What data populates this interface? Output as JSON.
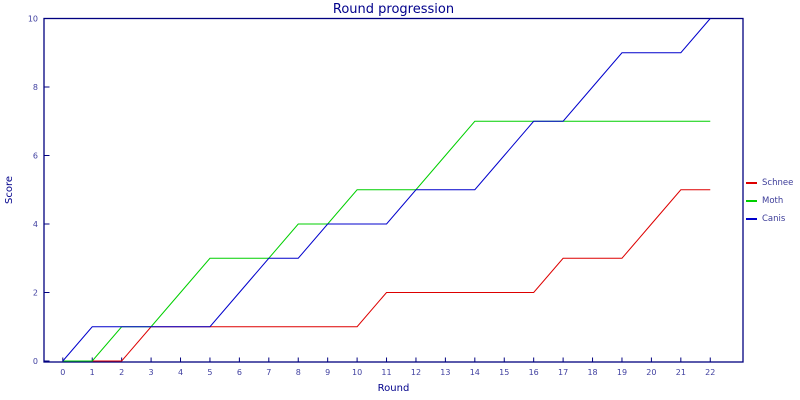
{
  "chart_data": {
    "type": "line",
    "title": "Round progression",
    "xlabel": "Round",
    "ylabel": "Score",
    "x_ticks": [
      0,
      1,
      2,
      3,
      4,
      5,
      6,
      7,
      8,
      9,
      10,
      11,
      12,
      13,
      14,
      15,
      16,
      17,
      18,
      19,
      20,
      21,
      22
    ],
    "y_ticks": [
      0,
      2,
      4,
      6,
      8,
      10
    ],
    "xlim": [
      0,
      22
    ],
    "ylim": [
      0,
      10
    ],
    "grid": false,
    "legend_position": "right-outside",
    "axis_color": "#000080",
    "tick_label_color": "#4040a0",
    "title_color": "#00008b",
    "series": [
      {
        "name": "Schnee",
        "color": "#dd0000",
        "values": [
          0,
          0,
          0,
          1,
          1,
          1,
          1,
          1,
          1,
          1,
          1,
          2,
          2,
          2,
          2,
          2,
          2,
          3,
          3,
          3,
          4,
          5,
          5
        ]
      },
      {
        "name": "Moth",
        "color": "#00cf00",
        "values": [
          0,
          0,
          1,
          1,
          2,
          3,
          3,
          3,
          4,
          4,
          5,
          5,
          5,
          6,
          7,
          7,
          7,
          7,
          7,
          7,
          7,
          7,
          7
        ]
      },
      {
        "name": "Canis",
        "color": "#0000cc",
        "values": [
          0,
          1,
          1,
          1,
          1,
          1,
          2,
          3,
          3,
          4,
          4,
          4,
          5,
          5,
          5,
          6,
          7,
          7,
          8,
          9,
          9,
          9,
          10
        ]
      }
    ]
  }
}
